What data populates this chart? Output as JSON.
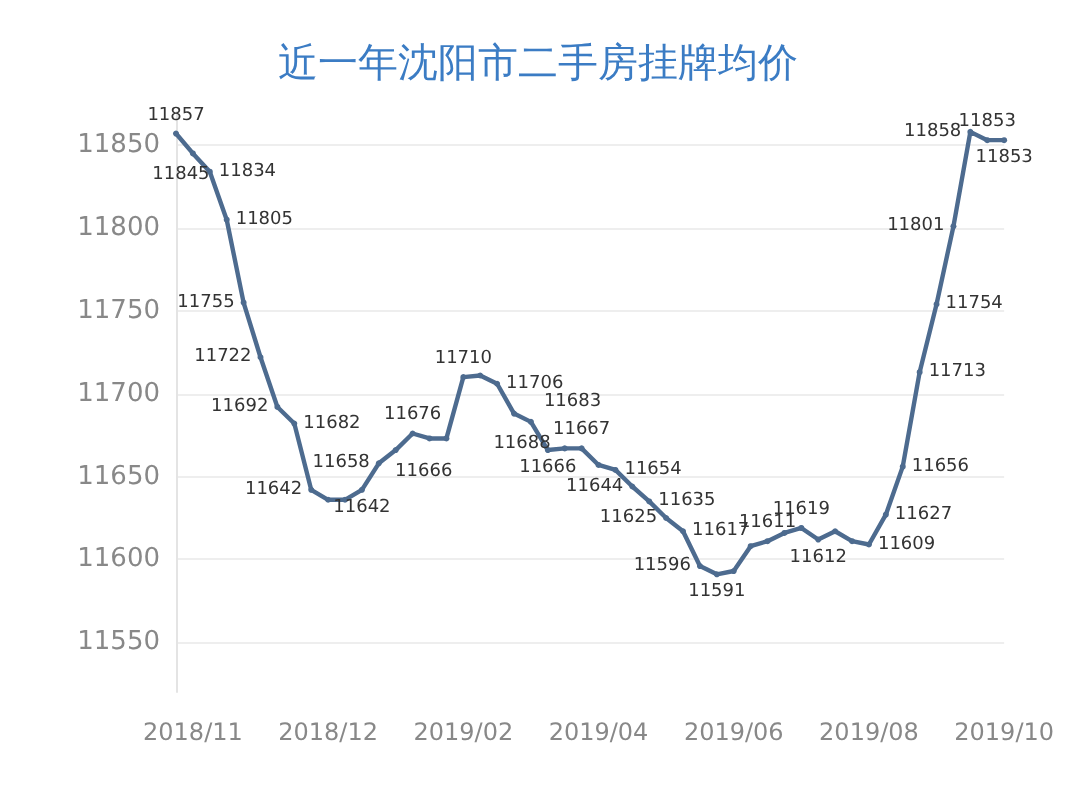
{
  "chart_data": {
    "type": "line",
    "title": "近一年沈阳市二手房挂牌均价",
    "categories": [
      null,
      "2018/11",
      null,
      null,
      null,
      null,
      null,
      null,
      null,
      "2018/12",
      null,
      null,
      null,
      null,
      null,
      null,
      null,
      "2019/02",
      null,
      null,
      null,
      null,
      null,
      null,
      null,
      "2019/04",
      null,
      null,
      null,
      null,
      null,
      null,
      null,
      "2019/06",
      null,
      null,
      null,
      null,
      null,
      null,
      null,
      "2019/08",
      null,
      null,
      null,
      null,
      null,
      null,
      null,
      "2019/10"
    ],
    "series": [
      {
        "color": "#4d6b8f",
        "values": [
          11857,
          11845,
          11834,
          11805,
          11755,
          11722,
          11692,
          11682,
          11642,
          11636,
          11636,
          11642,
          11658,
          11666,
          11676,
          11673,
          11673,
          11710,
          11711,
          11706,
          11688,
          11683,
          11666,
          11667,
          11667,
          11657,
          11654,
          11644,
          11635,
          11625,
          11617,
          11596,
          11591,
          11593,
          11608,
          11611,
          11616,
          11619,
          11612,
          11617,
          11611,
          11609,
          11627,
          11656,
          11713,
          11754,
          11801,
          11858,
          11853,
          11853
        ],
        "value_labels": [
          "11857",
          "11845",
          "11834",
          "11805",
          "11755",
          "11722",
          "11692",
          "11682",
          "11642",
          null,
          null,
          "11642",
          "11658",
          "11666",
          "11676",
          null,
          null,
          "11710",
          null,
          "11706",
          "11688",
          "11683",
          "11666",
          null,
          "11667",
          null,
          "11654",
          "11644",
          "11635",
          "11625",
          "11617",
          "11596",
          "11591",
          null,
          null,
          "11611",
          null,
          "11619",
          "11612",
          null,
          null,
          "11609",
          "11627",
          "11656",
          "11713",
          "11754",
          "11801",
          "11858",
          "11853",
          "11853"
        ]
      }
    ],
    "ylim": [
      11520,
      11870
    ],
    "yticks": [
      11550,
      11600,
      11650,
      11700,
      11750,
      11800,
      11850
    ],
    "grid": "y",
    "marker": "circle",
    "line_style": "solid"
  }
}
